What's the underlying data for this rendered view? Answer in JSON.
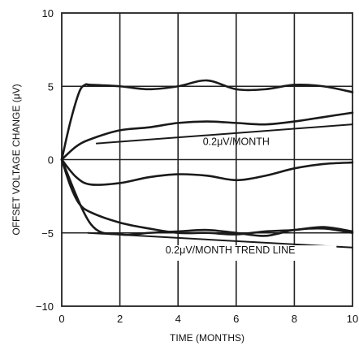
{
  "chart_data": {
    "type": "line",
    "title": "",
    "xlabel": "TIME (MONTHS)",
    "ylabel": "OFFSET VOLTAGE CHANGE (μV)",
    "xlim": [
      0,
      10
    ],
    "ylim": [
      -10,
      10
    ],
    "grid": true,
    "xticks": [
      "0",
      "2",
      "4",
      "6",
      "8",
      "10"
    ],
    "yticks": [
      "10",
      "5",
      "0",
      "−5",
      "−10"
    ],
    "series": [
      {
        "x": [
          0,
          0.3,
          0.6,
          0.8,
          1,
          2,
          3,
          4,
          5,
          6,
          7,
          8,
          9,
          10
        ],
        "values": [
          0,
          2.6,
          4.6,
          5.1,
          5.1,
          5.0,
          4.8,
          5.0,
          5.4,
          4.8,
          4.8,
          5.1,
          5.0,
          4.6
        ]
      },
      {
        "x": [
          0,
          0.5,
          1,
          2,
          3,
          4,
          5,
          6,
          7,
          8,
          9,
          10
        ],
        "values": [
          0,
          0.9,
          1.4,
          2.0,
          2.2,
          2.5,
          2.6,
          2.5,
          2.4,
          2.6,
          2.9,
          3.2
        ]
      },
      {
        "x": [
          0,
          0.5,
          1,
          2,
          3,
          4,
          5,
          6,
          7,
          8,
          9,
          10
        ],
        "values": [
          0,
          -1.2,
          -1.7,
          -1.6,
          -1.2,
          -1.0,
          -1.1,
          -1.4,
          -1.1,
          -0.6,
          -0.3,
          -0.2
        ]
      },
      {
        "x": [
          0,
          0.3,
          0.6,
          1,
          2,
          3,
          4,
          5,
          6,
          7,
          8,
          9,
          10
        ],
        "values": [
          0,
          -1.8,
          -3.0,
          -3.6,
          -4.3,
          -4.7,
          -5.0,
          -5.0,
          -5.1,
          -4.9,
          -4.8,
          -4.6,
          -4.9
        ]
      },
      {
        "x": [
          0,
          1,
          2,
          3,
          4,
          5,
          6,
          7,
          8,
          9,
          10
        ],
        "values": [
          0,
          -4.4,
          -5.1,
          -5.0,
          -4.9,
          -4.8,
          -5.0,
          -5.2,
          -4.8,
          -4.7,
          -5.0
        ]
      },
      {
        "x": [
          1.2,
          10
        ],
        "values": [
          1.1,
          2.4
        ]
      },
      {
        "x": [
          0.9,
          10
        ],
        "values": [
          -5.0,
          -6.0
        ]
      }
    ],
    "annotations": [
      "0.2μV/MONTH",
      "0.2μV/MONTH TREND LINE"
    ]
  }
}
